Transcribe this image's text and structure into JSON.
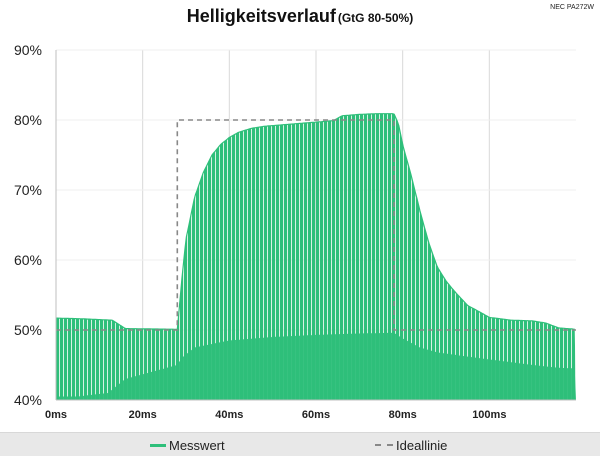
{
  "chart_data": {
    "type": "area",
    "title": "Helligkeitsverlauf",
    "subtitle": "(GtG 80-50%)",
    "corner_label": "NEC PA272W",
    "xlabel": "",
    "ylabel": "",
    "x_unit": "ms",
    "xlim": [
      0,
      120
    ],
    "ylim": [
      40,
      90
    ],
    "x_ticks": [
      0,
      20,
      40,
      60,
      80,
      100
    ],
    "x_tick_labels": [
      "0ms",
      "20ms",
      "40ms",
      "60ms",
      "80ms",
      "100ms"
    ],
    "y_ticks": [
      40,
      50,
      60,
      70,
      80,
      90
    ],
    "y_tick_labels": [
      "40%",
      "50%",
      "60%",
      "70%",
      "80%",
      "90%"
    ],
    "grid": "vertical",
    "legend_position": "bottom",
    "colors": {
      "measured": "#2ebf7a",
      "ideal": "#888888",
      "grid": "#d9d9d9"
    },
    "series": [
      {
        "name": "Messwert",
        "style": "solid-fill",
        "upper": {
          "x": [
            0,
            6,
            13,
            16,
            28,
            29,
            30,
            32,
            34,
            36,
            38,
            40,
            42,
            45,
            48,
            52,
            56,
            60,
            64,
            66,
            70,
            74,
            78,
            79,
            80,
            82,
            84,
            86,
            88,
            90,
            92,
            95,
            98,
            100,
            105,
            110,
            113,
            116,
            120
          ],
          "y": [
            51.7,
            51.6,
            51.4,
            50.2,
            50.1,
            57,
            63,
            69,
            72.5,
            75,
            76.5,
            77.5,
            78.2,
            78.8,
            79.1,
            79.3,
            79.5,
            79.7,
            79.9,
            80.6,
            80.8,
            80.9,
            80.9,
            79.5,
            76.5,
            72,
            67,
            62.5,
            59,
            57,
            55.5,
            53.5,
            52.5,
            51.8,
            51.4,
            51.3,
            51,
            50.3,
            50.1
          ]
        },
        "lower": {
          "x": [
            0,
            5,
            12,
            16,
            28,
            29,
            32,
            36,
            40,
            50,
            60,
            70,
            78,
            80,
            84,
            88,
            95,
            100,
            105,
            110,
            113,
            116,
            120
          ],
          "y": [
            40.5,
            40.5,
            41,
            43,
            45,
            46,
            47.5,
            48,
            48.5,
            49,
            49.3,
            49.5,
            49.6,
            48.8,
            47.5,
            46.8,
            46.2,
            45.8,
            45.4,
            45,
            44.8,
            44.6,
            44.5
          ]
        }
      },
      {
        "name": "Ideallinie",
        "style": "dashed",
        "x": [
          0,
          28,
          28,
          78,
          78,
          120
        ],
        "y": [
          50,
          50,
          80,
          80,
          50,
          50
        ]
      }
    ]
  }
}
